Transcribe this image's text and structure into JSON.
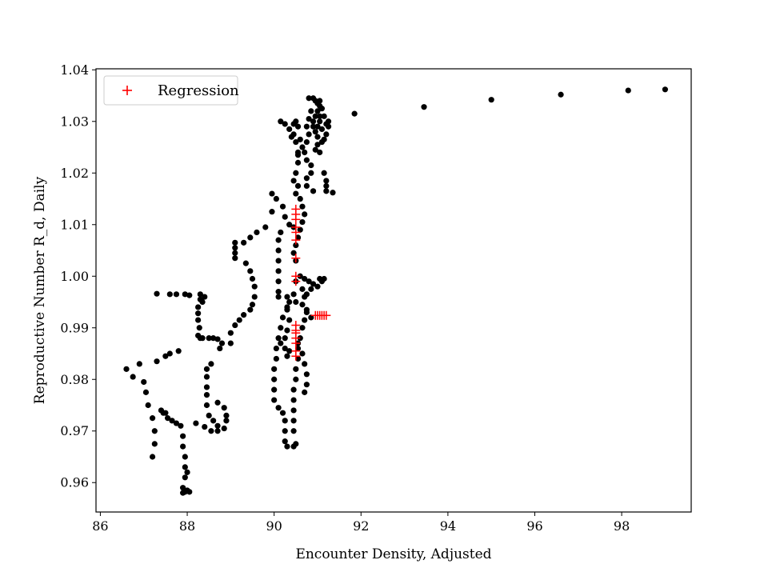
{
  "chart_data": {
    "type": "scatter",
    "title": "",
    "xlabel": "Encounter Density, Adjusted",
    "ylabel": "Reproductive Number R_d, Daily",
    "xlim": [
      85.9,
      99.6
    ],
    "ylim": [
      0.9543,
      1.0402
    ],
    "xticks": [
      86,
      88,
      90,
      92,
      94,
      96,
      98
    ],
    "yticks": [
      0.96,
      0.97,
      0.98,
      0.99,
      1.0,
      1.01,
      1.02,
      1.03,
      1.04
    ],
    "xtick_labels": [
      "86",
      "88",
      "90",
      "92",
      "94",
      "96",
      "98"
    ],
    "ytick_labels": [
      "0.96",
      "0.97",
      "0.98",
      "0.99",
      "1.00",
      "1.01",
      "1.02",
      "1.03",
      "1.04"
    ],
    "grid": false,
    "legend": {
      "position": "top-left",
      "entries": [
        "Regression"
      ]
    },
    "series": [
      {
        "marker": "circle",
        "color": "#000000",
        "points": [
          [
            86.6,
            0.982
          ],
          [
            86.75,
            0.9805
          ],
          [
            86.9,
            0.983
          ],
          [
            87.0,
            0.9795
          ],
          [
            87.05,
            0.9775
          ],
          [
            87.1,
            0.975
          ],
          [
            87.2,
            0.9725
          ],
          [
            87.2,
            0.965
          ],
          [
            87.25,
            0.9675
          ],
          [
            87.25,
            0.97
          ],
          [
            87.3,
            0.9835
          ],
          [
            87.4,
            0.974
          ],
          [
            87.45,
            0.9735
          ],
          [
            87.5,
            0.9735
          ],
          [
            87.5,
            0.9845
          ],
          [
            87.55,
            0.9725
          ],
          [
            87.6,
            0.985
          ],
          [
            87.65,
            0.972
          ],
          [
            87.75,
            0.9715
          ],
          [
            87.8,
            0.9855
          ],
          [
            87.85,
            0.971
          ],
          [
            87.9,
            0.969
          ],
          [
            87.9,
            0.967
          ],
          [
            87.95,
            0.965
          ],
          [
            87.95,
            0.963
          ],
          [
            87.95,
            0.961
          ],
          [
            87.9,
            0.959
          ],
          [
            87.9,
            0.958
          ],
          [
            87.95,
            0.9582
          ],
          [
            88.0,
            0.9585
          ],
          [
            88.0,
            0.962
          ],
          [
            88.05,
            0.9582
          ],
          [
            88.2,
            0.9715
          ],
          [
            88.4,
            0.9708
          ],
          [
            88.3,
            0.9965
          ],
          [
            87.6,
            0.9965
          ],
          [
            87.75,
            0.9965
          ],
          [
            87.95,
            0.9965
          ],
          [
            88.05,
            0.9963
          ],
          [
            87.3,
            0.9966
          ],
          [
            88.3,
            0.9955
          ],
          [
            88.4,
            0.996
          ],
          [
            88.35,
            0.995
          ],
          [
            88.25,
            0.994
          ],
          [
            88.25,
            0.9928
          ],
          [
            88.25,
            0.9915
          ],
          [
            88.28,
            0.99
          ],
          [
            88.25,
            0.9885
          ],
          [
            88.3,
            0.988
          ],
          [
            88.35,
            0.988
          ],
          [
            88.5,
            0.988
          ],
          [
            88.6,
            0.988
          ],
          [
            88.7,
            0.9878
          ],
          [
            88.8,
            0.987
          ],
          [
            88.75,
            0.986
          ],
          [
            88.55,
            0.983
          ],
          [
            88.45,
            0.982
          ],
          [
            88.45,
            0.9805
          ],
          [
            88.45,
            0.9785
          ],
          [
            88.45,
            0.977
          ],
          [
            88.45,
            0.975
          ],
          [
            88.5,
            0.973
          ],
          [
            88.6,
            0.972
          ],
          [
            88.7,
            0.971
          ],
          [
            88.85,
            0.9705
          ],
          [
            88.9,
            0.972
          ],
          [
            88.9,
            0.973
          ],
          [
            88.85,
            0.9745
          ],
          [
            88.7,
            0.9755
          ],
          [
            88.7,
            0.97
          ],
          [
            88.55,
            0.97
          ],
          [
            89.0,
            0.987
          ],
          [
            89.0,
            0.989
          ],
          [
            89.1,
            0.9905
          ],
          [
            89.2,
            0.9915
          ],
          [
            89.3,
            0.9925
          ],
          [
            89.45,
            0.9935
          ],
          [
            89.5,
            0.9945
          ],
          [
            89.55,
            0.996
          ],
          [
            89.55,
            0.998
          ],
          [
            89.5,
            0.9995
          ],
          [
            89.45,
            1.001
          ],
          [
            89.35,
            1.0025
          ],
          [
            89.1,
            1.0035
          ],
          [
            89.1,
            1.0045
          ],
          [
            89.1,
            1.0055
          ],
          [
            89.1,
            1.0065
          ],
          [
            89.3,
            1.0065
          ],
          [
            89.45,
            1.0075
          ],
          [
            89.6,
            1.0085
          ],
          [
            89.8,
            1.0095
          ],
          [
            89.95,
            1.0125
          ],
          [
            89.95,
            1.016
          ],
          [
            90.05,
            1.015
          ],
          [
            90.2,
            1.0135
          ],
          [
            90.25,
            1.0115
          ],
          [
            90.35,
            1.01
          ],
          [
            90.45,
            1.0095
          ],
          [
            90.15,
            1.0085
          ],
          [
            90.1,
            1.007
          ],
          [
            90.1,
            1.005
          ],
          [
            90.1,
            1.003
          ],
          [
            90.1,
            1.001
          ],
          [
            90.1,
            0.999
          ],
          [
            90.1,
            0.997
          ],
          [
            90.1,
            0.996
          ],
          [
            90.3,
            0.996
          ],
          [
            90.45,
            0.9965
          ],
          [
            90.3,
            0.994
          ],
          [
            90.2,
            0.992
          ],
          [
            90.15,
            0.99
          ],
          [
            90.1,
            0.988
          ],
          [
            90.15,
            0.987
          ],
          [
            90.05,
            0.986
          ],
          [
            90.05,
            0.984
          ],
          [
            90.0,
            0.982
          ],
          [
            90.0,
            0.98
          ],
          [
            90.0,
            0.978
          ],
          [
            90.0,
            0.976
          ],
          [
            90.1,
            0.9745
          ],
          [
            90.2,
            0.9735
          ],
          [
            90.25,
            0.972
          ],
          [
            90.25,
            0.97
          ],
          [
            90.25,
            0.968
          ],
          [
            90.3,
            0.967
          ],
          [
            90.45,
            0.967
          ],
          [
            90.5,
            0.9675
          ],
          [
            90.45,
            0.97
          ],
          [
            90.45,
            0.972
          ],
          [
            90.45,
            0.974
          ],
          [
            90.45,
            0.976
          ],
          [
            90.45,
            0.978
          ],
          [
            90.5,
            0.98
          ],
          [
            90.5,
            0.982
          ],
          [
            90.55,
            0.984
          ],
          [
            90.55,
            0.986
          ],
          [
            90.35,
            0.9855
          ],
          [
            90.3,
            0.9845
          ],
          [
            90.25,
            0.986
          ],
          [
            90.25,
            0.988
          ],
          [
            90.3,
            0.9895
          ],
          [
            90.35,
            0.9915
          ],
          [
            90.3,
            0.9935
          ],
          [
            90.35,
            0.995
          ],
          [
            90.5,
            0.995
          ],
          [
            90.65,
            0.9945
          ],
          [
            90.75,
            0.9935
          ],
          [
            90.7,
            0.9915
          ],
          [
            90.65,
            0.99
          ],
          [
            90.6,
            0.988
          ],
          [
            90.55,
            0.987
          ],
          [
            90.65,
            0.985
          ],
          [
            90.7,
            0.983
          ],
          [
            90.75,
            0.981
          ],
          [
            90.75,
            0.979
          ],
          [
            90.7,
            0.9775
          ],
          [
            90.5,
            0.999
          ],
          [
            90.6,
            1.0
          ],
          [
            90.7,
            0.9995
          ],
          [
            90.8,
            0.999
          ],
          [
            90.9,
            0.9985
          ],
          [
            91.0,
            0.998
          ],
          [
            91.1,
            0.999
          ],
          [
            91.15,
            0.9995
          ],
          [
            91.05,
            0.9995
          ],
          [
            90.85,
            0.9975
          ],
          [
            90.75,
            0.9965
          ],
          [
            90.7,
            0.996
          ],
          [
            90.65,
            0.9975
          ],
          [
            90.75,
            0.993
          ],
          [
            90.85,
            0.992
          ],
          [
            90.5,
            1.003
          ],
          [
            90.45,
            1.0045
          ],
          [
            90.5,
            1.006
          ],
          [
            90.55,
            1.0075
          ],
          [
            90.6,
            1.009
          ],
          [
            90.65,
            1.0105
          ],
          [
            90.7,
            1.012
          ],
          [
            90.65,
            1.0135
          ],
          [
            90.6,
            1.015
          ],
          [
            90.5,
            1.016
          ],
          [
            90.55,
            1.0175
          ],
          [
            90.75,
            1.0175
          ],
          [
            90.9,
            1.0165
          ],
          [
            90.45,
            1.0185
          ],
          [
            90.5,
            1.02
          ],
          [
            90.55,
            1.022
          ],
          [
            90.55,
            1.024
          ],
          [
            90.5,
            1.026
          ],
          [
            90.4,
            1.027
          ],
          [
            90.35,
            1.0285
          ],
          [
            90.25,
            1.0295
          ],
          [
            90.15,
            1.03
          ],
          [
            90.45,
            1.0295
          ],
          [
            90.5,
            1.03
          ],
          [
            90.55,
            1.029
          ],
          [
            90.45,
            1.0275
          ],
          [
            90.6,
            1.0265
          ],
          [
            90.65,
            1.025
          ],
          [
            90.55,
            1.0235
          ],
          [
            90.75,
            1.0225
          ],
          [
            90.85,
            1.0215
          ],
          [
            90.85,
            1.02
          ],
          [
            90.75,
            1.019
          ],
          [
            90.7,
            1.024
          ],
          [
            90.75,
            1.026
          ],
          [
            90.8,
            1.0275
          ],
          [
            90.75,
            1.029
          ],
          [
            90.8,
            1.0305
          ],
          [
            90.85,
            1.032
          ],
          [
            90.8,
            1.0345
          ],
          [
            90.9,
            1.0345
          ],
          [
            90.95,
            1.034
          ],
          [
            91.0,
            1.0335
          ],
          [
            91.05,
            1.034
          ],
          [
            91.05,
            1.033
          ],
          [
            91.0,
            1.032
          ],
          [
            90.95,
            1.031
          ],
          [
            91.1,
            1.0325
          ],
          [
            91.15,
            1.031
          ],
          [
            91.05,
            1.03
          ],
          [
            91.0,
            1.029
          ],
          [
            90.95,
            1.028
          ],
          [
            91.0,
            1.027
          ],
          [
            91.1,
            1.0285
          ],
          [
            91.2,
            1.0295
          ],
          [
            91.2,
            1.0275
          ],
          [
            91.1,
            1.026
          ],
          [
            91.0,
            1.0255
          ],
          [
            90.95,
            1.0245
          ],
          [
            91.05,
            1.024
          ],
          [
            91.15,
            1.0265
          ],
          [
            91.25,
            1.029
          ],
          [
            91.25,
            1.03
          ],
          [
            91.05,
            1.031
          ],
          [
            90.9,
            1.03
          ],
          [
            90.9,
            1.029
          ],
          [
            91.15,
            1.02
          ],
          [
            91.2,
            1.0185
          ],
          [
            91.2,
            1.0175
          ],
          [
            91.2,
            1.0165
          ],
          [
            91.35,
            1.0162
          ],
          [
            91.85,
            1.0315
          ],
          [
            93.45,
            1.0328
          ],
          [
            95.0,
            1.0342
          ],
          [
            96.6,
            1.0352
          ],
          [
            98.15,
            1.036
          ],
          [
            99.0,
            1.0362
          ]
        ]
      },
      {
        "name": "Regression",
        "marker": "plus",
        "color": "#ff0000",
        "points": [
          [
            90.5,
            1.013
          ],
          [
            90.5,
            1.012
          ],
          [
            90.5,
            1.011
          ],
          [
            90.5,
            1.0095
          ],
          [
            90.5,
            1.0085
          ],
          [
            90.5,
            1.007
          ],
          [
            90.5,
            1.0035
          ],
          [
            90.5,
            1.0
          ],
          [
            90.5,
            0.999
          ],
          [
            90.5,
            0.9905
          ],
          [
            90.5,
            0.9895
          ],
          [
            90.5,
            0.989
          ],
          [
            90.5,
            0.988
          ],
          [
            90.5,
            0.987
          ],
          [
            90.5,
            0.9855
          ],
          [
            90.5,
            0.9845
          ],
          [
            90.95,
            0.9924
          ],
          [
            91.0,
            0.9924
          ],
          [
            91.05,
            0.9924
          ],
          [
            91.1,
            0.9924
          ],
          [
            91.15,
            0.9924
          ],
          [
            91.2,
            0.9924
          ]
        ]
      }
    ]
  }
}
